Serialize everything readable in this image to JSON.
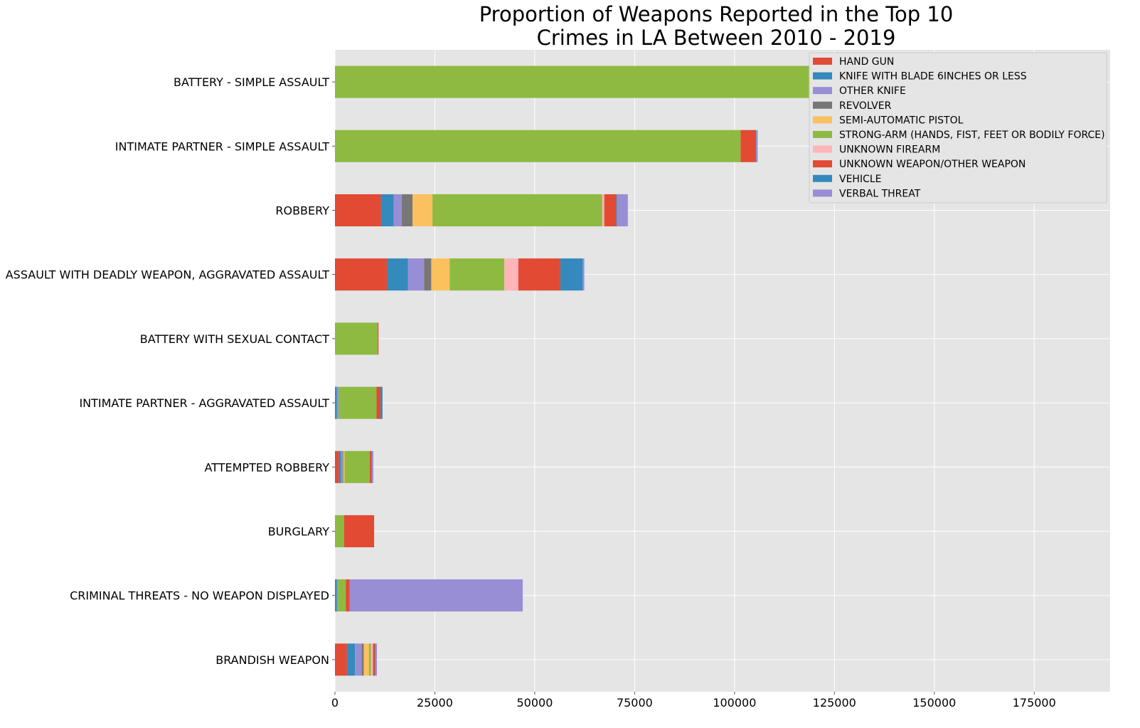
{
  "chart_data": {
    "type": "bar",
    "orientation": "horizontal",
    "stacked": true,
    "title": "Proportion of Weapons Reported in the Top 10 Crimes in LA Between 2010 - 2019",
    "title_lines": [
      "Proportion of Weapons Reported in the Top 10",
      "Crimes in LA Between 2010 - 2019"
    ],
    "xlabel": "",
    "ylabel": "",
    "xlim": [
      0,
      194000
    ],
    "xticks": [
      0,
      25000,
      50000,
      75000,
      100000,
      125000,
      150000,
      175000
    ],
    "xtick_labels": [
      "0",
      "25000",
      "50000",
      "75000",
      "100000",
      "125000",
      "150000",
      "175000"
    ],
    "grid": true,
    "legend_position": "top-right",
    "categories": [
      "BRANDISH WEAPON",
      "CRIMINAL THREATS - NO WEAPON DISPLAYED",
      "BURGLARY",
      "ATTEMPTED ROBBERY",
      "INTIMATE PARTNER - AGGRAVATED ASSAULT",
      "BATTERY WITH SEXUAL CONTACT",
      "ASSAULT WITH DEADLY WEAPON, AGGRAVATED ASSAULT",
      "ROBBERY",
      "INTIMATE PARTNER - SIMPLE ASSAULT",
      "BATTERY - SIMPLE ASSAULT"
    ],
    "series": [
      {
        "name": "HAND GUN",
        "color": "#E24A33",
        "values": [
          3000,
          0,
          0,
          1000,
          0,
          0,
          13000,
          11500,
          0,
          0
        ]
      },
      {
        "name": "KNIFE WITH BLADE 6INCHES OR LESS",
        "color": "#348ABD",
        "values": [
          2000,
          500,
          0,
          500,
          500,
          0,
          5300,
          3200,
          0,
          0
        ]
      },
      {
        "name": "OTHER KNIFE",
        "color": "#988ED5",
        "values": [
          1700,
          200,
          0,
          400,
          400,
          0,
          4000,
          2000,
          0,
          0
        ]
      },
      {
        "name": "REVOLVER",
        "color": "#777777",
        "values": [
          500,
          0,
          0,
          200,
          0,
          0,
          1800,
          2700,
          0,
          0
        ]
      },
      {
        "name": "SEMI-AUTOMATIC PISTOL",
        "color": "#FBC15E",
        "values": [
          1300,
          0,
          0,
          300,
          0,
          0,
          4600,
          5000,
          0,
          0
        ]
      },
      {
        "name": "STRONG-ARM (HANDS, FIST, FEET OR BODILY FORCE)",
        "color": "#8EBA42",
        "values": [
          500,
          2000,
          2300,
          6300,
          9500,
          10700,
          13700,
          42500,
          101500,
          174000
        ]
      },
      {
        "name": "UNKNOWN FIREARM",
        "color": "#FFB5B8",
        "values": [
          500,
          0,
          0,
          0,
          0,
          0,
          3500,
          500,
          0,
          0
        ]
      },
      {
        "name": "UNKNOWN WEAPON/OTHER WEAPON",
        "color": "#E24A33",
        "values": [
          500,
          1000,
          7500,
          500,
          1000,
          200,
          10500,
          3000,
          3900,
          10300
        ]
      },
      {
        "name": "VEHICLE",
        "color": "#348ABD",
        "values": [
          200,
          0,
          0,
          100,
          500,
          0,
          5600,
          200,
          100,
          100
        ]
      },
      {
        "name": "VERBAL THREAT",
        "color": "#988ED5",
        "values": [
          300,
          43300,
          0,
          300,
          0,
          0,
          400,
          2700,
          300,
          500
        ]
      }
    ]
  }
}
